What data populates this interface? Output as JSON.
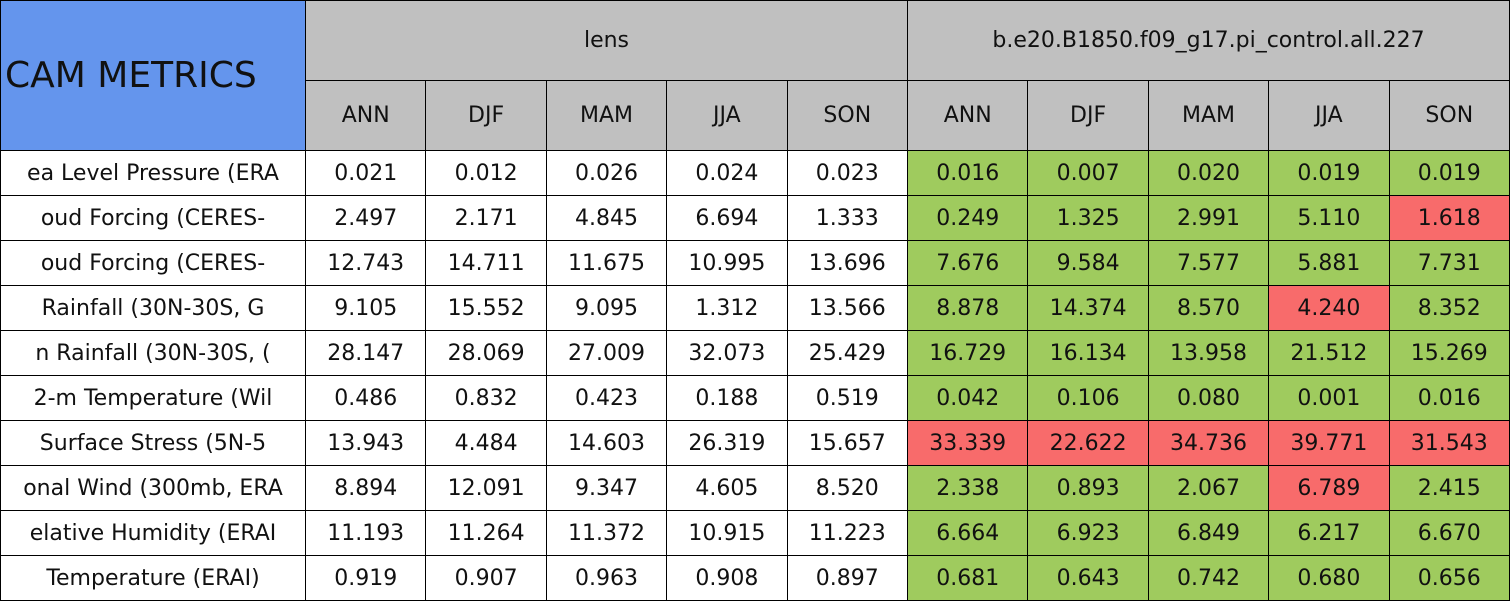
{
  "table": {
    "title": "CAM METRICS",
    "title_color": "#6495ed",
    "header_color": "#c0c0c0",
    "groups": [
      {
        "name": "lens",
        "span": 5
      },
      {
        "name": "b.e20.B1850.f09_g17.pi_control.all.227",
        "span": 5
      }
    ],
    "columns": [
      "ANN",
      "DJF",
      "MAM",
      "JJA",
      "SON",
      "ANN",
      "DJF",
      "MAM",
      "JJA",
      "SON"
    ],
    "rows": [
      {
        "label": "ea Level Pressure (ERA",
        "cells": [
          "0.021",
          "0.012",
          "0.026",
          "0.024",
          "0.023",
          "0.016",
          "0.007",
          "0.020",
          "0.019",
          "0.019"
        ],
        "colors": [
          "#ffffff",
          "#ffffff",
          "#ffffff",
          "#ffffff",
          "#ffffff",
          "#9fcb5e",
          "#9fcb5e",
          "#9fcb5e",
          "#9fcb5e",
          "#9fcb5e"
        ]
      },
      {
        "label": "oud Forcing (CERES-",
        "cells": [
          "2.497",
          "2.171",
          "4.845",
          "6.694",
          "1.333",
          "0.249",
          "1.325",
          "2.991",
          "5.110",
          "1.618"
        ],
        "colors": [
          "#ffffff",
          "#ffffff",
          "#ffffff",
          "#ffffff",
          "#ffffff",
          "#9fcb5e",
          "#9fcb5e",
          "#9fcb5e",
          "#9fcb5e",
          "#f86b6b"
        ]
      },
      {
        "label": "oud Forcing (CERES-",
        "cells": [
          "12.743",
          "14.711",
          "11.675",
          "10.995",
          "13.696",
          "7.676",
          "9.584",
          "7.577",
          "5.881",
          "7.731"
        ],
        "colors": [
          "#ffffff",
          "#ffffff",
          "#ffffff",
          "#ffffff",
          "#ffffff",
          "#9fcb5e",
          "#9fcb5e",
          "#9fcb5e",
          "#9fcb5e",
          "#9fcb5e"
        ]
      },
      {
        "label": "Rainfall (30N-30S, G",
        "cells": [
          "9.105",
          "15.552",
          "9.095",
          "1.312",
          "13.566",
          "8.878",
          "14.374",
          "8.570",
          "4.240",
          "8.352"
        ],
        "colors": [
          "#ffffff",
          "#ffffff",
          "#ffffff",
          "#ffffff",
          "#ffffff",
          "#9fcb5e",
          "#9fcb5e",
          "#9fcb5e",
          "#f86b6b",
          "#9fcb5e"
        ]
      },
      {
        "label": "n Rainfall (30N-30S, (",
        "cells": [
          "28.147",
          "28.069",
          "27.009",
          "32.073",
          "25.429",
          "16.729",
          "16.134",
          "13.958",
          "21.512",
          "15.269"
        ],
        "colors": [
          "#ffffff",
          "#ffffff",
          "#ffffff",
          "#ffffff",
          "#ffffff",
          "#9fcb5e",
          "#9fcb5e",
          "#9fcb5e",
          "#9fcb5e",
          "#9fcb5e"
        ]
      },
      {
        "label": "2-m Temperature (Wil",
        "cells": [
          "0.486",
          "0.832",
          "0.423",
          "0.188",
          "0.519",
          "0.042",
          "0.106",
          "0.080",
          "0.001",
          "0.016"
        ],
        "colors": [
          "#ffffff",
          "#ffffff",
          "#ffffff",
          "#ffffff",
          "#ffffff",
          "#9fcb5e",
          "#9fcb5e",
          "#9fcb5e",
          "#9fcb5e",
          "#9fcb5e"
        ]
      },
      {
        "label": "Surface Stress (5N-5",
        "cells": [
          "13.943",
          "4.484",
          "14.603",
          "26.319",
          "15.657",
          "33.339",
          "22.622",
          "34.736",
          "39.771",
          "31.543"
        ],
        "colors": [
          "#ffffff",
          "#ffffff",
          "#ffffff",
          "#ffffff",
          "#ffffff",
          "#f86b6b",
          "#f86b6b",
          "#f86b6b",
          "#f86b6b",
          "#f86b6b"
        ]
      },
      {
        "label": "onal Wind (300mb, ERA",
        "cells": [
          "8.894",
          "12.091",
          "9.347",
          "4.605",
          "8.520",
          "2.338",
          "0.893",
          "2.067",
          "6.789",
          "2.415"
        ],
        "colors": [
          "#ffffff",
          "#ffffff",
          "#ffffff",
          "#ffffff",
          "#ffffff",
          "#9fcb5e",
          "#9fcb5e",
          "#9fcb5e",
          "#f86b6b",
          "#9fcb5e"
        ]
      },
      {
        "label": "elative Humidity (ERAI",
        "cells": [
          "11.193",
          "11.264",
          "11.372",
          "10.915",
          "11.223",
          "6.664",
          "6.923",
          "6.849",
          "6.217",
          "6.670"
        ],
        "colors": [
          "#ffffff",
          "#ffffff",
          "#ffffff",
          "#ffffff",
          "#ffffff",
          "#9fcb5e",
          "#9fcb5e",
          "#9fcb5e",
          "#9fcb5e",
          "#9fcb5e"
        ]
      },
      {
        "label": "Temperature (ERAI)",
        "cells": [
          "0.919",
          "0.907",
          "0.963",
          "0.908",
          "0.897",
          "0.681",
          "0.643",
          "0.742",
          "0.680",
          "0.656"
        ],
        "colors": [
          "#ffffff",
          "#ffffff",
          "#ffffff",
          "#ffffff",
          "#ffffff",
          "#9fcb5e",
          "#9fcb5e",
          "#9fcb5e",
          "#9fcb5e",
          "#9fcb5e"
        ]
      }
    ]
  }
}
